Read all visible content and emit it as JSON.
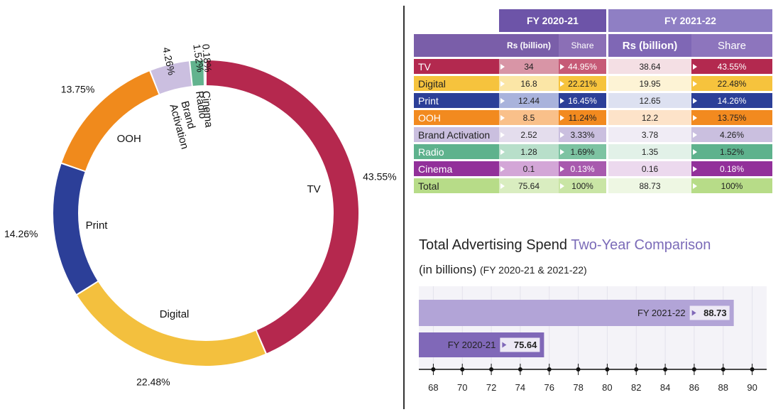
{
  "chart_data": [
    {
      "type": "pie",
      "donut": true,
      "categories": [
        "TV",
        "Digital",
        "Print",
        "OOH",
        "Brand Activation",
        "Radio",
        "Cinema"
      ],
      "values": [
        43.55,
        22.48,
        14.26,
        13.75,
        4.26,
        1.52,
        0.18
      ],
      "value_labels": [
        "43.55%",
        "22.48%",
        "14.26%",
        "13.75%",
        "4.26%",
        "1.52%",
        "0.18%"
      ],
      "colors": [
        "#b5284e",
        "#f3c03e",
        "#2c3f98",
        "#f08a1c",
        "#cbbfe0",
        "#62b38e",
        "#8e2a96"
      ]
    },
    {
      "type": "table",
      "group_headers": [
        "FY 2020-21",
        "FY 2021-22"
      ],
      "columns": [
        "Rs (billion)",
        "Share",
        "Rs (billion)",
        "Share"
      ],
      "rows": [
        {
          "label": "TV",
          "values": [
            "34",
            "44.95%",
            "38.64",
            "43.55%"
          ]
        },
        {
          "label": "Digital",
          "values": [
            "16.8",
            "22.21%",
            "19.95",
            "22.48%"
          ]
        },
        {
          "label": "Print",
          "values": [
            "12.44",
            "16.45%",
            "12.65",
            "14.26%"
          ]
        },
        {
          "label": "OOH",
          "values": [
            "8.5",
            "11.24%",
            "12.2",
            "13.75%"
          ]
        },
        {
          "label": "Brand Activation",
          "values": [
            "2.52",
            "3.33%",
            "3.78",
            "4.26%"
          ]
        },
        {
          "label": "Radio",
          "values": [
            "1.28",
            "1.69%",
            "1.35",
            "1.52%"
          ]
        },
        {
          "label": "Cinema",
          "values": [
            "0.1",
            "0.13%",
            "0.16",
            "0.18%"
          ]
        },
        {
          "label": "Total",
          "values": [
            "75.64",
            "100%",
            "88.73",
            "100%"
          ]
        }
      ]
    },
    {
      "type": "bar",
      "orientation": "horizontal",
      "title_main": "Total Advertising Spend",
      "title_accent": "Two-Year Comparison",
      "subtitle_main": "(in billions)",
      "subtitle_small": "(FY 2020-21 & 2021-22)",
      "categories": [
        "FY 2021-22",
        "FY 2020-21"
      ],
      "values": [
        88.73,
        75.64
      ],
      "value_labels": [
        "88.73",
        "75.64"
      ],
      "xlim": [
        67,
        91
      ],
      "xticks": [
        "68",
        "70",
        "72",
        "74",
        "76",
        "78",
        "80",
        "82",
        "84",
        "86",
        "88",
        "90"
      ],
      "colors": [
        "#b2a4d7",
        "#8068b8"
      ]
    }
  ]
}
